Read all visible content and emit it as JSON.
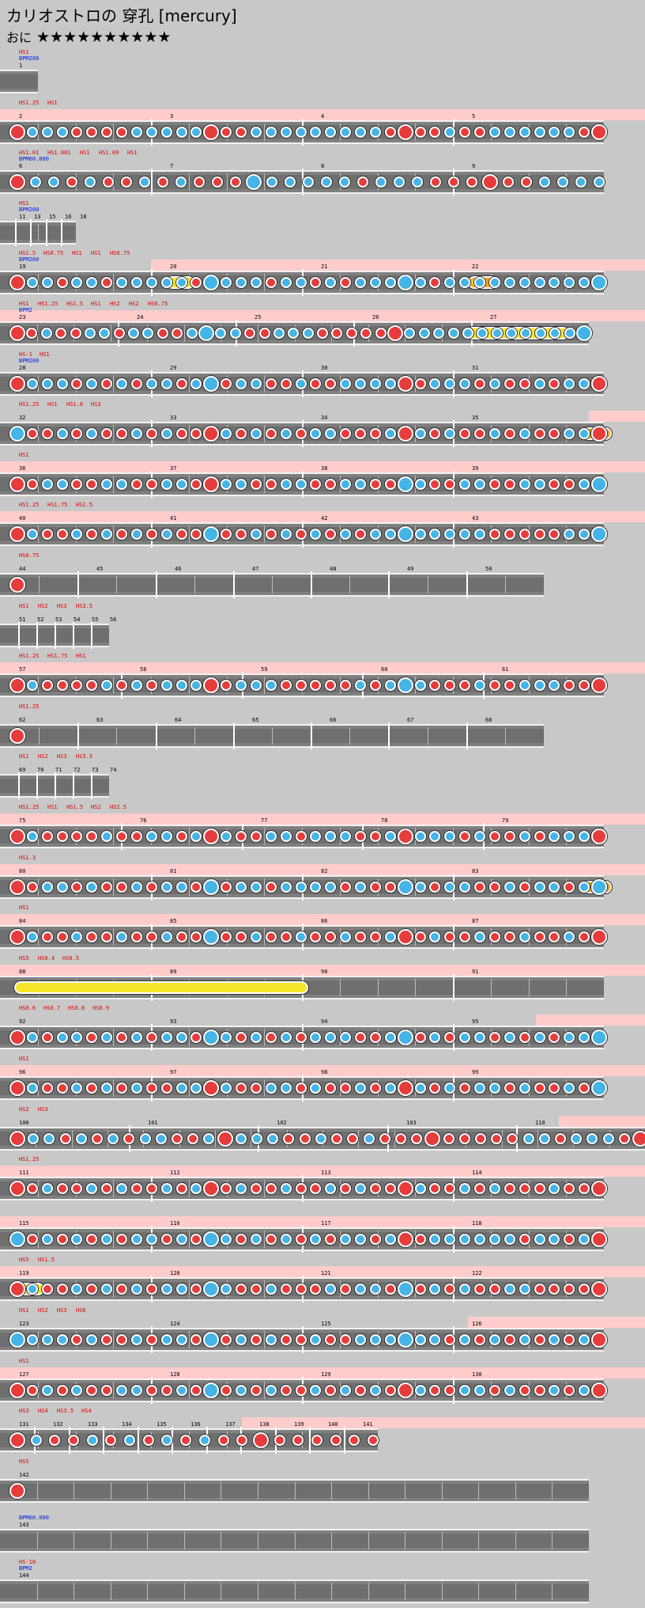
{
  "header": {
    "title": "カリオストロの 穿孔 [mercury]",
    "difficulty_label": "おに",
    "stars": "★★★★★★★★★★"
  },
  "colors": {
    "don": "#e63c3c",
    "ka": "#45b4e6",
    "roll": "#f5e52a",
    "balloon": "#f0a020",
    "hs_highlight": "#ffcccc",
    "lane": "#808080"
  },
  "chart": [
    {
      "hs": [
        "HS1"
      ],
      "bpm": [
        "BPM200"
      ],
      "bars": [
        "1"
      ],
      "measures": 0.25,
      "hsFrom": null,
      "notes": ""
    },
    {
      "hs": [
        "HS1.25",
        "HS1"
      ],
      "bpm": [],
      "bars": [
        "2",
        "3",
        "4",
        "5"
      ],
      "measures": 4,
      "hsFrom": 0,
      "notes": "D.K.K.K.D.D.D.D.K.K.K.K.K.D.D.D.K.K.K.K.K.K.K.K.K.D.D.D.D.K.D.D.K.K.K.K.K.K.D.D"
    },
    {
      "hs": [
        "HS1.01",
        "HS1.001",
        "HS1",
        "HS1.09",
        "HS1"
      ],
      "bpm": [
        "BPM60.000"
      ],
      "bars": [
        "6",
        "7",
        "8",
        "9"
      ],
      "measures": 4,
      "hsFrom": null,
      "notes": "D.K.K.D.K.D.D.K.D.K.D.D.D.K.K.K.K.K.K.D.K.K.K.D.D.D.D.D.D.K.K.K.K"
    },
    {
      "hs": [
        "HS1"
      ],
      "bpm": [
        "BPM200"
      ],
      "bars": [
        "11",
        "13",
        "15",
        "16",
        "18"
      ],
      "measures": 0.5,
      "hsFrom": null,
      "notes": ""
    },
    {
      "hs": [
        "HS1.5",
        "HS0.75",
        "HS1",
        "HS1",
        "HS0.75"
      ],
      "bpm": [
        "BPM200"
      ],
      "bars": [
        "19",
        "20",
        "21",
        "22"
      ],
      "measures": 4,
      "hsFrom": 1,
      "notes": "D.K.K.D.K.K.D.K.K.K.K.K.D.K.K.K.K.D.K.K.D.K.D.K.K.K.K.K.D.K.K.K.K.K.K.K.K.K.K.K"
    },
    {
      "hs": [
        "HS1",
        "HS1.25",
        "HS1.5",
        "HS1",
        "HS2",
        "HS2",
        "HS0.75"
      ],
      "bpm": [
        "BPM2"
      ],
      "bars": [
        "23",
        "24",
        "25",
        "26",
        "27"
      ],
      "measures": 3.9,
      "hsFrom": 0,
      "notes": "D.D.K.D.D.K.K.D.K.K.D.D.K.K.K.K.D.D.K.K.K.D.D.D.D.D.D.K.K.K.K.K.K.K.K.K.K.K.K.K"
    },
    {
      "hs": [
        "HS-1",
        "HS1"
      ],
      "bpm": [
        "BPM200"
      ],
      "bars": [
        "28",
        "29",
        "30",
        "31"
      ],
      "measures": 4,
      "hsFrom": null,
      "notes": "D.K.K.K.D.K.D.K.D.K.K.D.K.K.D.K.K.D.D.K.D.D.K.K.K.K.D.D.K.K.K.D.K.D.D.K.D.K.K.D"
    },
    {
      "hs": [
        "HS1.25",
        "HS1",
        "HS1.6",
        "HS3"
      ],
      "bpm": [],
      "bars": [
        "32",
        "33",
        "34",
        "35"
      ],
      "measures": 4,
      "hsFrom": 3.9,
      "notes": "K.D.D.K.D.K.D.D.K.D.K.D.D.D.K.D.K.D.K.D.K.K.D.D.D.K.D.K.D.K.D.D.K.D.K.D.D.K.K.D"
    },
    {
      "hs": [
        "HS1"
      ],
      "bpm": [],
      "bars": [
        "36",
        "37",
        "38",
        "39"
      ],
      "measures": 4,
      "hsFrom": 0,
      "notes": "D.D.K.K.D.D.K.K.D.D.K.K.D.D.K.K.D.D.K.K.D.D.K.K.D.D.K.K.D.D.K.K.D.D.K.K.D.D.K.K"
    },
    {
      "hs": [
        "HS1.25",
        "HS1.75",
        "HS2.5"
      ],
      "bpm": [],
      "bars": [
        "40",
        "41",
        "42",
        "43"
      ],
      "measures": 4,
      "hsFrom": 0,
      "notes": "D.K.D.D.K.D.K.D.K.D.K.D.D.K.D.D.K.D.K.D.K.D.K.D.K.K.K.K.K.K.K.K.D.D.D.D.D.K.K.K"
    },
    {
      "hs": [
        "HS0.75"
      ],
      "bpm": [],
      "bars": [
        "44",
        "45",
        "46",
        "47",
        "48",
        "49",
        "50"
      ],
      "measures": 3.6,
      "hsFrom": null,
      "notes": "D"
    },
    {
      "hs": [
        "HS1",
        "HS2",
        "HS3",
        "HS3.5"
      ],
      "bpm": [],
      "bars": [
        "51",
        "52",
        "53",
        "54",
        "55",
        "56"
      ],
      "measures": 0.72,
      "hsFrom": null,
      "notes": ""
    },
    {
      "hs": [
        "HS1.25",
        "HS1.75",
        "HS1"
      ],
      "bpm": [],
      "bars": [
        "57",
        "58",
        "59",
        "60",
        "61"
      ],
      "measures": 4,
      "hsFrom": 0,
      "notes": "D.K.D.D.D.D.K.D.K.D.K.K.K.D.D.K.K.K.D.D.D.D.D.K.D.K.K.K.D.D.D.K.D.D.K.K.K.D.D.D"
    },
    {
      "hs": [
        "HS1.25"
      ],
      "bpm": [],
      "bars": [
        "62",
        "63",
        "64",
        "65",
        "66",
        "67",
        "68"
      ],
      "measures": 3.6,
      "hsFrom": null,
      "notes": "D"
    },
    {
      "hs": [
        "HS1",
        "HS2",
        "HS3",
        "HS3.5"
      ],
      "bpm": [],
      "bars": [
        "69",
        "70",
        "71",
        "72",
        "73",
        "74"
      ],
      "measures": 0.72,
      "hsFrom": null,
      "notes": ""
    },
    {
      "hs": [
        "HS1.25",
        "HS1",
        "HS1.5",
        "HS2",
        "HS2.5"
      ],
      "bpm": [],
      "bars": [
        "75",
        "76",
        "77",
        "78",
        "79"
      ],
      "measures": 4,
      "hsFrom": 0,
      "notes": "D.K.D.D.D.D.K.D.D.K.K.D.K.D.K.D.D.K.K.D.K.K.K.D.D.K.D.K.K.K.D.K.D.D.K.D.K.K.K.D"
    },
    {
      "hs": [
        "HS1.3"
      ],
      "bpm": [],
      "bars": [
        "80",
        "81",
        "82",
        "83"
      ],
      "measures": 4,
      "hsFrom": 0,
      "notes": "D.D.K.K.D.K.D.D.K.D.K.K.D.K.D.K.K.D.K.K.K.K.D.K.D.D.K.K.D.K.K.D.D.K.D.K.K.D.K.K"
    },
    {
      "hs": [
        "HS1"
      ],
      "bpm": [],
      "bars": [
        "84",
        "85",
        "86",
        "87"
      ],
      "measures": 4,
      "hsFrom": 0,
      "notes": "D.K.D.D.K.D.D.K.D.D.K.D.D.K.D.D.K.D.D.K.D.D.K.D.D.K.D.D.K.D.D.K.D.D.K.D.D.K.D.D"
    },
    {
      "hs": [
        "HS5",
        "HS0.4",
        "HS0.5"
      ],
      "bpm": [],
      "bars": [
        "88",
        "89",
        "90",
        "91"
      ],
      "measures": 4,
      "hsFrom": 0,
      "notes": ""
    },
    {
      "hs": [
        "HS0.6",
        "HS0.7",
        "HS0.8",
        "HS0.9"
      ],
      "bpm": [],
      "bars": [
        "92",
        "93",
        "94",
        "95"
      ],
      "measures": 4,
      "hsFrom": 3.55,
      "notes": "D.K.D.K.K.D.K.D.K.D.K.K.D.K.K.D.K.D.K.D.K.K.K.D.D.K.K.D.K.D.K.K.D.K.D.K.D.K.K.K"
    },
    {
      "hs": [
        "HS1"
      ],
      "bpm": [],
      "bars": [
        "96",
        "97",
        "98",
        "99"
      ],
      "measures": 4,
      "hsFrom": 0,
      "notes": "D.K.D.D.K.D.K.D.K.D.D.K.K.D.K.D.D.K.K.D.K.D.D.K.D.K.D.K.D.K.D.K.K.D.K.D.D.K.D.K"
    },
    {
      "hs": [
        "HS2",
        "HS3"
      ],
      "bpm": [],
      "bars": [
        "100",
        "101",
        "102",
        "103",
        "110"
      ],
      "measures": 4.4,
      "hsFrom": 3.7,
      "notes": "D.K.K.D.K.D.K.D.K.K.D.D.K.D.K.K.K.D.D.K.D.D.K.D.D.D.D.D.D.D.D.D.K.K.D.K.K.K.D.D"
    },
    {
      "hs": [
        "HS1.25"
      ],
      "bpm": [],
      "bars": [
        "111",
        "112",
        "113",
        "114"
      ],
      "measures": 4,
      "hsFrom": 0,
      "notes": "D.D.K.D.D.K.D.K.D.D.K.D.K.D.D.K.D.D.K.D.D.K.D.K.D.D.D.K.D.D.K.D.K.D.D.D.K.D.D.D"
    },
    {
      "hs": [],
      "bpm": [],
      "bars": [
        "115",
        "116",
        "117",
        "118"
      ],
      "measures": 4,
      "hsFrom": 0,
      "notes": "K.D.K.D.K.D.K.D.K.K.D.K.D.K.K.D.K.D.K.D.K.D.K.K.D.K.D.D.K.K.K.K.K.K.D.K.K.D.K.D"
    },
    {
      "hs": [
        "HS5",
        "HS1.5"
      ],
      "bpm": [],
      "bars": [
        "119",
        "120",
        "121",
        "122"
      ],
      "measures": 4,
      "hsFrom": 0,
      "notes": "D.K.D.D.K.D.K.D.K.D.K.K.D.K.K.D.D.K.D.D.D.K.D.K.K.D.K.D.K.D.K.D.D.K.K.D.D.D.D.D"
    },
    {
      "hs": [
        "HS1",
        "HS2",
        "HS3",
        "HS6"
      ],
      "bpm": [],
      "bars": [
        "123",
        "124",
        "125",
        "126"
      ],
      "measures": 4,
      "hsFrom": 3.1,
      "notes": "K.K.K.K.D.K.D.D.K.D.K.K.D.K.D.K.D.K.D.D.K.D.D.K.K.K.K.K.K.D.K.D.K.D.K.D.K.D.K.D"
    },
    {
      "hs": [
        "HS1"
      ],
      "bpm": [],
      "bars": [
        "127",
        "128",
        "129",
        "130"
      ],
      "measures": 4,
      "hsFrom": 0,
      "notes": "D.D.K.D.K.D.D.K.K.D.D.K.D.K.D.K.D.K.D.D.K.D.K.D.K.D.D.K.D.D.K.K.D.K.D.D.K.D.K.D"
    },
    {
      "hs": [
        "HS3",
        "HS4",
        "HS3.5",
        "HS4"
      ],
      "bpm": [],
      "bars": [
        "131",
        "132",
        "133",
        "134",
        "135",
        "136",
        "137",
        "138",
        "139",
        "140",
        "141"
      ],
      "measures": 2.5,
      "hsFrom": 1.6,
      "notes": "D.K.D.D.K.D.K.D.K.D.K.D.D.D.D.D.D.D.D.D"
    },
    {
      "hs": [
        "HS5"
      ],
      "bpm": [],
      "bars": [
        "142"
      ],
      "measures": 3.9,
      "hsFrom": null,
      "notes": "D"
    },
    {
      "hs": [],
      "bpm": [
        "BPM60.000"
      ],
      "bars": [
        "143"
      ],
      "measures": 3.9,
      "hsFrom": null,
      "notes": ""
    },
    {
      "hs": [
        "HS-10"
      ],
      "bpm": [
        "BPM2"
      ],
      "bars": [
        "144"
      ],
      "measures": 3.9,
      "hsFrom": null,
      "notes": ""
    }
  ]
}
